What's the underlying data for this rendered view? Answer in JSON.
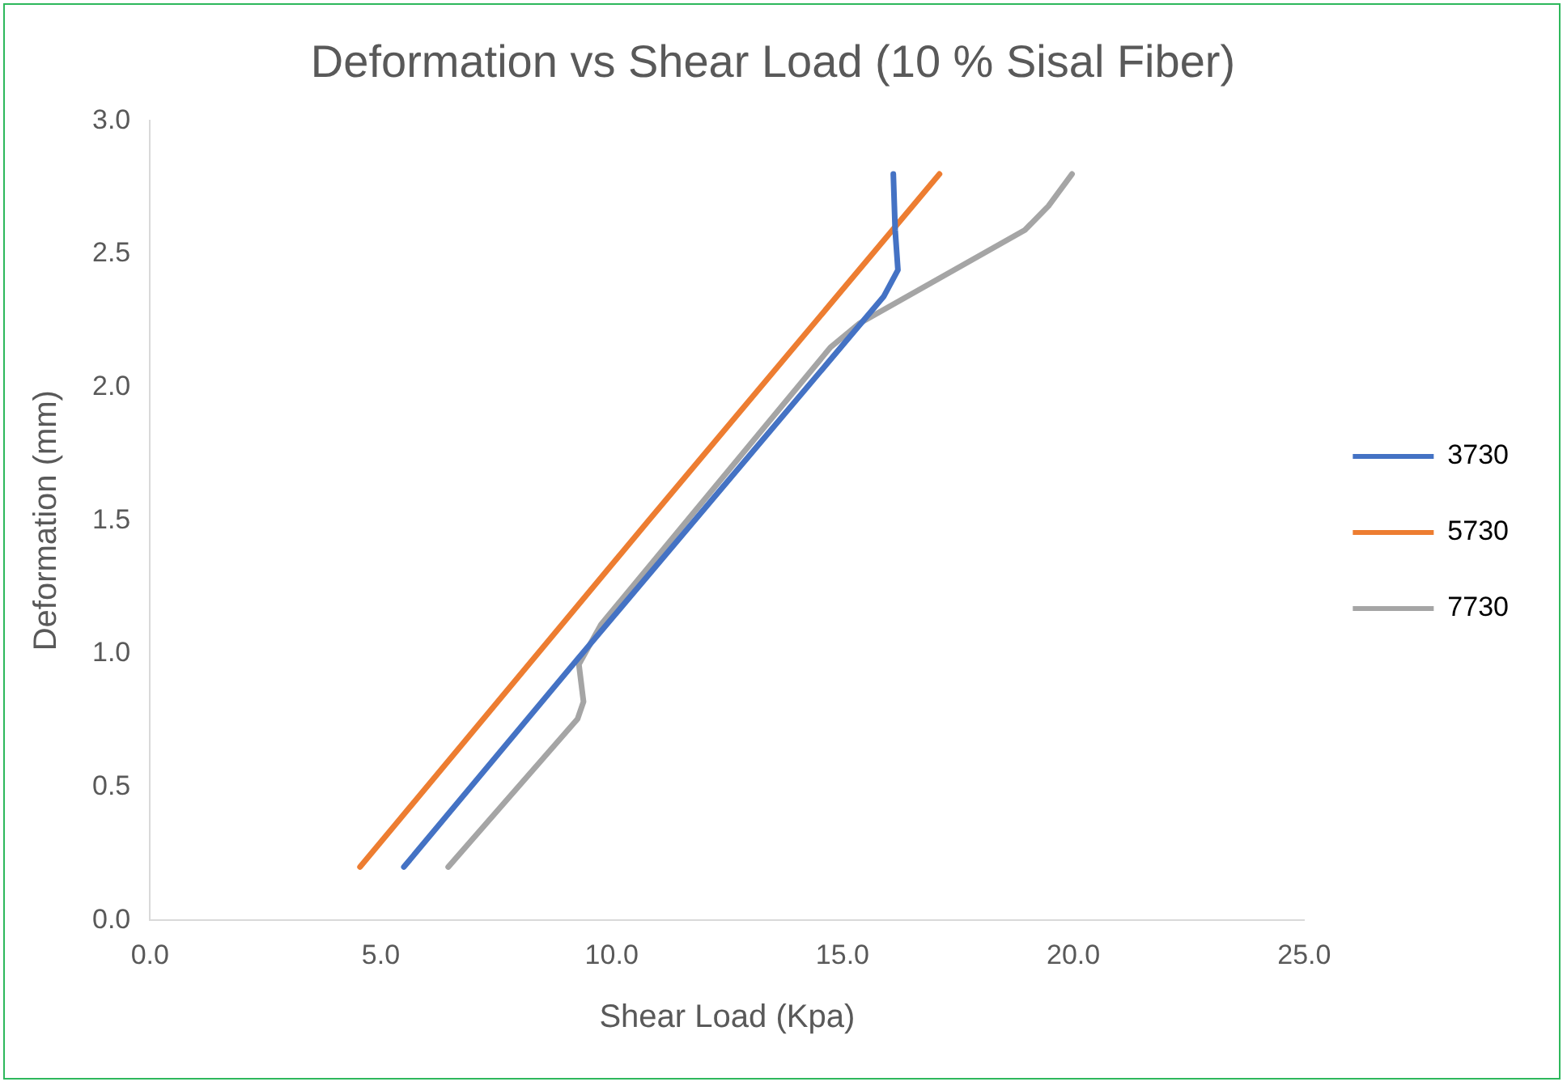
{
  "chart_data": {
    "type": "line",
    "title": "Deformation vs Shear Load (10 % Sisal Fiber)",
    "xlabel": "Shear Load (Kpa)",
    "ylabel": "Deformation (mm)",
    "xlim": [
      0,
      25
    ],
    "xticks": [
      {
        "value": 0,
        "label": "0.0"
      },
      {
        "value": 5,
        "label": "5.0"
      },
      {
        "value": 10,
        "label": "10.0"
      },
      {
        "value": 15,
        "label": "15.0"
      },
      {
        "value": 20,
        "label": "20.0"
      },
      {
        "value": 25,
        "label": "25.0"
      }
    ],
    "ylim": [
      0,
      3
    ],
    "yticks": [
      {
        "value": 0,
        "label": "0.0"
      },
      {
        "value": 0.5,
        "label": "0.5"
      },
      {
        "value": 1,
        "label": "1.0"
      },
      {
        "value": 1.5,
        "label": "1.5"
      },
      {
        "value": 2,
        "label": "2.0"
      },
      {
        "value": 2.5,
        "label": "2.5"
      },
      {
        "value": 3,
        "label": "3.0"
      }
    ],
    "grid": false,
    "legend": "right",
    "marker": "none",
    "line_style": "solid",
    "series": [
      {
        "name": "3730",
        "color": "#4472c4",
        "x": [
          5.5,
          9.26,
          15.89,
          16.2,
          16.14,
          16.1
        ],
        "values": [
          0.2,
          0.98,
          2.34,
          2.44,
          2.59,
          2.8
        ]
      },
      {
        "name": "5730",
        "color": "#ed7d31",
        "x": [
          4.55,
          10.8,
          17.1
        ],
        "values": [
          0.2,
          1.5,
          2.8
        ]
      },
      {
        "name": "7730",
        "color": "#a5a5a5",
        "x": [
          6.46,
          9.26,
          9.39,
          9.29,
          9.77,
          14.74,
          15.37,
          18.95,
          19.46,
          19.97
        ],
        "values": [
          0.2,
          0.755,
          0.82,
          0.96,
          1.11,
          2.15,
          2.24,
          2.59,
          2.68,
          2.8
        ]
      }
    ]
  }
}
